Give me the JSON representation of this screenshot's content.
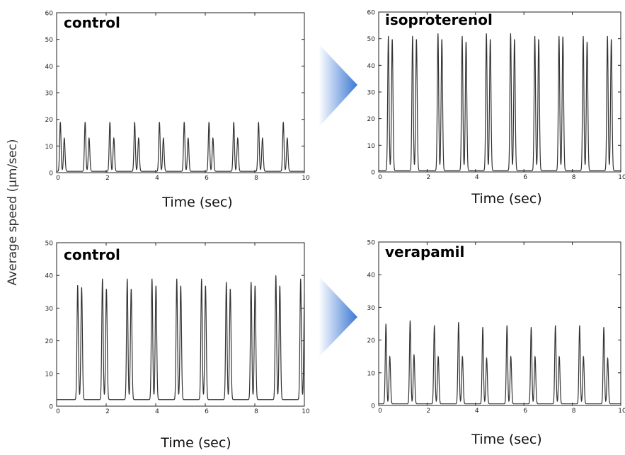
{
  "figure": {
    "ylabel": "Average speed (μm/sec)",
    "xlabel": "Time (sec)"
  },
  "arrows": {
    "color_light": "#ffffff",
    "color_dark": "#3b78d4"
  },
  "chart_data": [
    {
      "type": "line",
      "title": "control",
      "xlabel": "Time (sec)",
      "xlim": [
        0,
        10
      ],
      "ylim": [
        0,
        60
      ],
      "xticks": [
        "0",
        "2",
        "4",
        "6",
        "8",
        "10"
      ],
      "yticks": [
        "0",
        "10",
        "20",
        "30",
        "40",
        "50",
        "60"
      ],
      "grid": false,
      "peak_times": [
        0.15,
        1.15,
        2.15,
        3.15,
        4.15,
        5.15,
        6.15,
        7.15,
        8.15,
        9.15
      ],
      "peak1_values": [
        19,
        19,
        19,
        19,
        19,
        19,
        19,
        19,
        19,
        19
      ],
      "peak2_values": [
        13,
        13,
        13,
        13,
        13,
        13,
        13,
        13,
        13,
        13
      ],
      "baseline": 0.5
    },
    {
      "type": "line",
      "title": "isoproterenol",
      "xlabel": "Time (sec)",
      "xlim": [
        0,
        10
      ],
      "ylim": [
        0,
        60
      ],
      "xticks": [
        "0",
        "2",
        "4",
        "6",
        "8",
        "10"
      ],
      "yticks": [
        "0",
        "10",
        "20",
        "30",
        "40",
        "50",
        "60"
      ],
      "grid": false,
      "peak_times": [
        0.4,
        1.4,
        2.45,
        3.45,
        4.45,
        5.45,
        6.45,
        7.45,
        8.45,
        9.45
      ],
      "peak1_values": [
        51,
        51,
        52,
        51,
        52,
        52,
        51,
        51,
        51,
        51
      ],
      "peak2_values": [
        50,
        50,
        50,
        49,
        50,
        50,
        50,
        51,
        49,
        50
      ],
      "baseline": 0.5
    },
    {
      "type": "line",
      "title": "control",
      "xlabel": "Time (sec)",
      "xlim": [
        0,
        10
      ],
      "ylim": [
        0,
        50
      ],
      "xticks": [
        "0",
        "2",
        "4",
        "6",
        "8",
        "10"
      ],
      "yticks": [
        "0",
        "10",
        "20",
        "30",
        "40",
        "50"
      ],
      "grid": false,
      "peak_times": [
        0.85,
        1.85,
        2.85,
        3.85,
        4.85,
        5.85,
        6.85,
        7.85,
        8.85,
        9.85
      ],
      "peak1_values": [
        37,
        39,
        39,
        39,
        39,
        39,
        38,
        38,
        40,
        39
      ],
      "peak2_values": [
        36.5,
        36,
        36,
        37,
        37,
        37,
        36,
        37,
        37,
        36
      ],
      "baseline": 2
    },
    {
      "type": "line",
      "title": "verapamil",
      "xlabel": "Time (sec)",
      "xlim": [
        0,
        10
      ],
      "ylim": [
        0,
        50
      ],
      "xticks": [
        "0",
        "2",
        "4",
        "6",
        "8",
        "10"
      ],
      "yticks": [
        "0",
        "10",
        "20",
        "30",
        "40",
        "50"
      ],
      "grid": false,
      "peak_times": [
        0.3,
        1.3,
        2.3,
        3.3,
        4.3,
        5.3,
        6.3,
        7.3,
        8.3,
        9.3
      ],
      "peak1_values": [
        25,
        26,
        24.5,
        25.5,
        24,
        24.5,
        24,
        24.5,
        24.5,
        24
      ],
      "peak2_values": [
        15,
        15.5,
        15,
        15,
        14.5,
        15,
        15,
        15,
        15,
        14.5
      ],
      "baseline": 0.5
    }
  ]
}
